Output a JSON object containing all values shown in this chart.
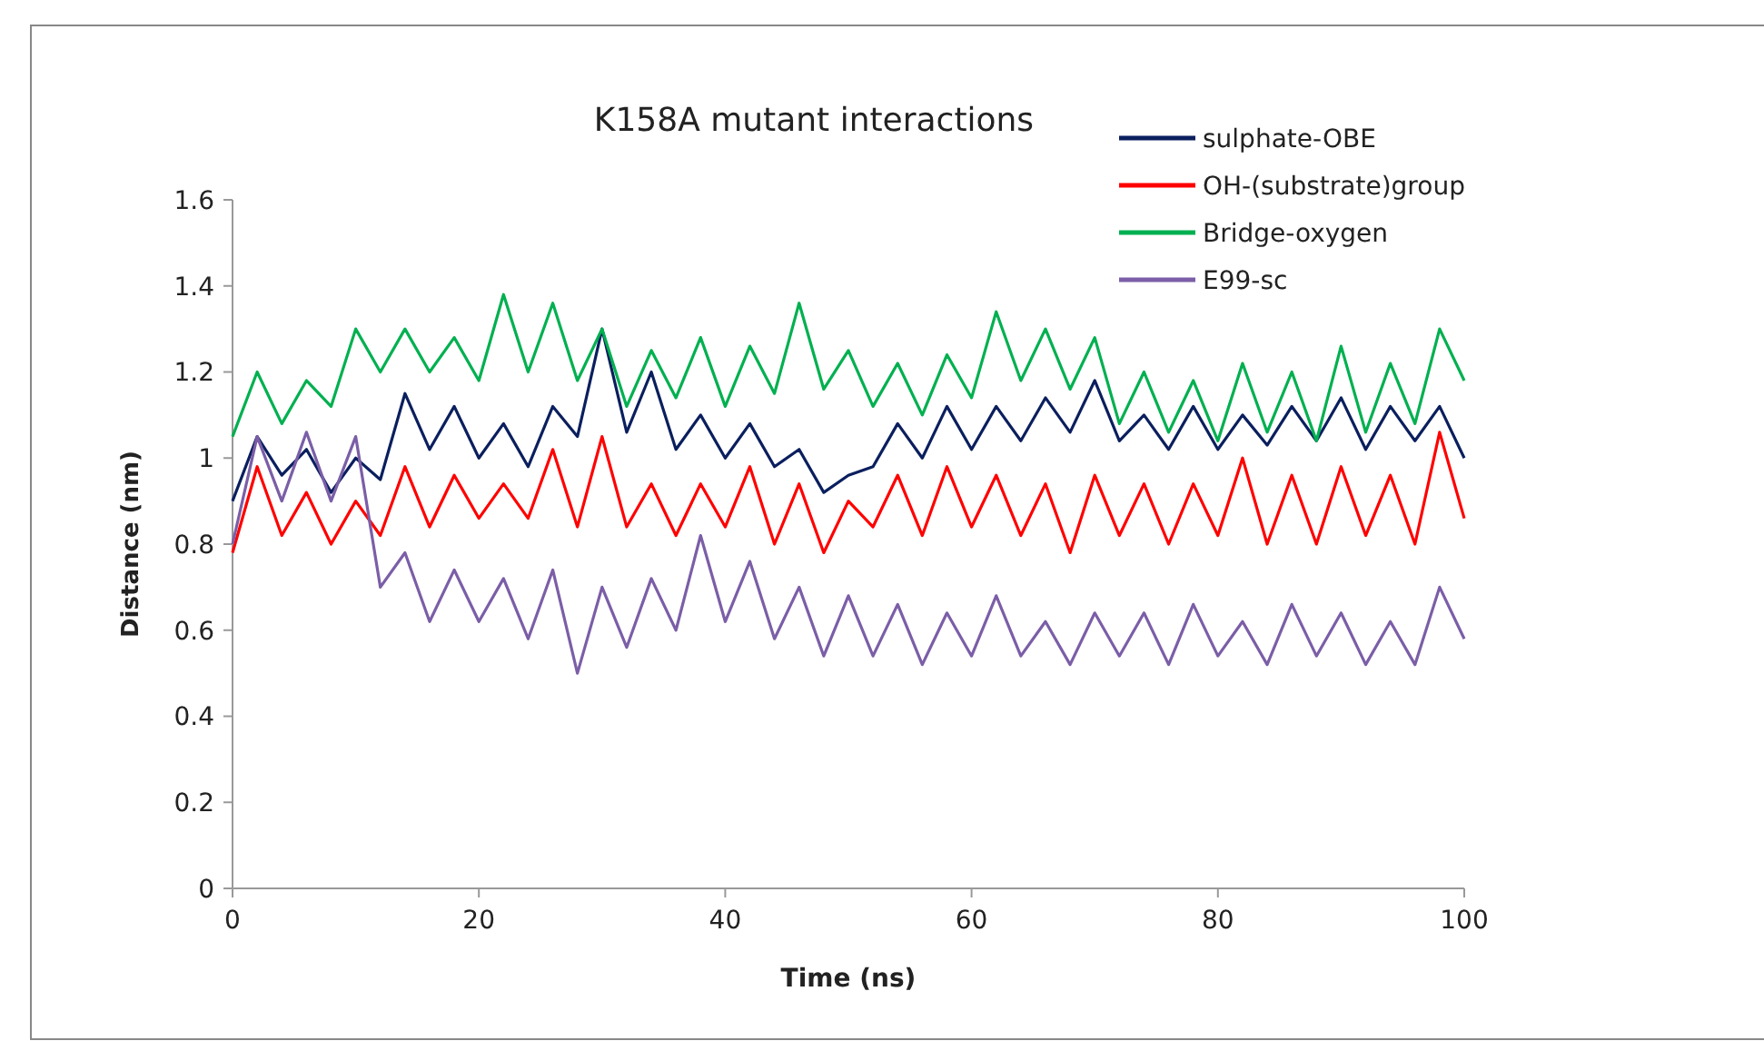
{
  "chart_data": {
    "type": "line",
    "title": "K158A  mutant interactions",
    "xlabel": "Time (ns)",
    "ylabel": "Distance (nm)",
    "x": [
      0,
      2,
      4,
      6,
      8,
      10,
      12,
      14,
      16,
      18,
      20,
      22,
      24,
      26,
      28,
      30,
      32,
      34,
      36,
      38,
      40,
      42,
      44,
      46,
      48,
      50,
      52,
      54,
      56,
      58,
      60,
      62,
      64,
      66,
      68,
      70,
      72,
      74,
      76,
      78,
      80,
      82,
      84,
      86,
      88,
      90,
      92,
      94,
      96,
      98,
      100
    ],
    "xlim": [
      0,
      100
    ],
    "xticks": [
      0,
      20,
      40,
      60,
      80,
      100
    ],
    "ylim": [
      0,
      1.6
    ],
    "yticks": [
      0,
      0.2,
      0.4,
      0.6,
      0.8,
      1,
      1.2,
      1.4,
      1.6
    ],
    "grid": false,
    "legend": "top right",
    "marker": "none",
    "line_style": "solid",
    "series": [
      {
        "name": "sulphate-OBE",
        "color": "#0b1f5e",
        "values": [
          0.9,
          1.05,
          0.96,
          1.02,
          0.92,
          1.0,
          0.95,
          1.15,
          1.02,
          1.12,
          1.0,
          1.08,
          0.98,
          1.12,
          1.05,
          1.3,
          1.06,
          1.2,
          1.02,
          1.1,
          1.0,
          1.08,
          0.98,
          1.02,
          0.92,
          0.96,
          0.98,
          1.08,
          1.0,
          1.12,
          1.02,
          1.12,
          1.04,
          1.14,
          1.06,
          1.18,
          1.04,
          1.1,
          1.02,
          1.12,
          1.02,
          1.1,
          1.03,
          1.12,
          1.04,
          1.14,
          1.02,
          1.12,
          1.04,
          1.12,
          1.0
        ]
      },
      {
        "name": "OH-(substrate)group",
        "color": "#ff0000",
        "values": [
          0.78,
          0.98,
          0.82,
          0.92,
          0.8,
          0.9,
          0.82,
          0.98,
          0.84,
          0.96,
          0.86,
          0.94,
          0.86,
          1.02,
          0.84,
          1.05,
          0.84,
          0.94,
          0.82,
          0.94,
          0.84,
          0.98,
          0.8,
          0.94,
          0.78,
          0.9,
          0.84,
          0.96,
          0.82,
          0.98,
          0.84,
          0.96,
          0.82,
          0.94,
          0.78,
          0.96,
          0.82,
          0.94,
          0.8,
          0.94,
          0.82,
          1.0,
          0.8,
          0.96,
          0.8,
          0.98,
          0.82,
          0.96,
          0.8,
          1.06,
          0.86
        ]
      },
      {
        "name": "Bridge-oxygen",
        "color": "#00b050",
        "values": [
          1.05,
          1.2,
          1.08,
          1.18,
          1.12,
          1.3,
          1.2,
          1.3,
          1.2,
          1.28,
          1.18,
          1.38,
          1.2,
          1.36,
          1.18,
          1.3,
          1.12,
          1.25,
          1.14,
          1.28,
          1.12,
          1.26,
          1.15,
          1.36,
          1.16,
          1.25,
          1.12,
          1.22,
          1.1,
          1.24,
          1.14,
          1.34,
          1.18,
          1.3,
          1.16,
          1.28,
          1.08,
          1.2,
          1.06,
          1.18,
          1.04,
          1.22,
          1.06,
          1.2,
          1.04,
          1.26,
          1.06,
          1.22,
          1.08,
          1.3,
          1.18
        ]
      },
      {
        "name": "E99-sc",
        "color": "#7b5ea7",
        "values": [
          0.8,
          1.05,
          0.9,
          1.06,
          0.9,
          1.05,
          0.7,
          0.78,
          0.62,
          0.74,
          0.62,
          0.72,
          0.58,
          0.74,
          0.5,
          0.7,
          0.56,
          0.72,
          0.6,
          0.82,
          0.62,
          0.76,
          0.58,
          0.7,
          0.54,
          0.68,
          0.54,
          0.66,
          0.52,
          0.64,
          0.54,
          0.68,
          0.54,
          0.62,
          0.52,
          0.64,
          0.54,
          0.64,
          0.52,
          0.66,
          0.54,
          0.62,
          0.52,
          0.66,
          0.54,
          0.64,
          0.52,
          0.62,
          0.52,
          0.7,
          0.58
        ]
      }
    ]
  }
}
